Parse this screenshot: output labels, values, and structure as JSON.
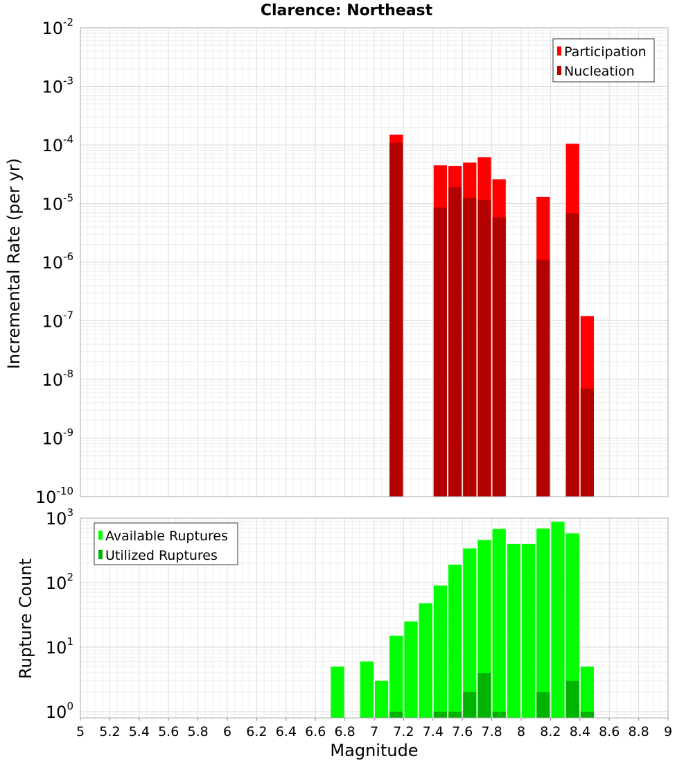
{
  "chart_data": [
    {
      "type": "bar",
      "title": "Clarence: Northeast",
      "ylabel": "Incremental Rate (per yr)",
      "xlabel": "",
      "yscale": "log",
      "ylim": [
        1e-10,
        0.01
      ],
      "xlim": [
        5,
        9
      ],
      "grid": true,
      "legend_position": "top-right",
      "yticks": [
        "10^-10",
        "10^-9",
        "10^-8",
        "10^-7",
        "10^-6",
        "10^-5",
        "10^-4",
        "10^-3",
        "10^-2"
      ],
      "x": [
        7.15,
        7.45,
        7.55,
        7.65,
        7.75,
        7.85,
        8.15,
        8.35,
        8.45
      ],
      "series": [
        {
          "name": "Participation",
          "color": "#ff0000",
          "values": [
            0.00015,
            4.5e-05,
            4.4e-05,
            5e-05,
            6.2e-05,
            2.6e-05,
            1.3e-05,
            0.000105,
            1.2e-07
          ]
        },
        {
          "name": "Nucleation",
          "color": "#b30000",
          "values": [
            0.00011,
            8.5e-06,
            1.9e-05,
            1.25e-05,
            1.15e-05,
            5.8e-06,
            1.1e-06,
            6.8e-06,
            7e-09
          ]
        }
      ]
    },
    {
      "type": "bar",
      "ylabel": "Rupture Count",
      "xlabel": "Magnitude",
      "yscale": "log",
      "ylim": [
        0.8,
        1000
      ],
      "xlim": [
        5,
        9
      ],
      "grid": true,
      "legend_position": "top-left",
      "yticks": [
        "10^0",
        "10^1",
        "10^2",
        "10^3"
      ],
      "xticks": [
        "5",
        "5.2",
        "5.4",
        "5.6",
        "5.8",
        "6",
        "6.2",
        "6.4",
        "6.6",
        "6.8",
        "7",
        "7.2",
        "7.4",
        "7.6",
        "7.8",
        "8",
        "8.2",
        "8.4",
        "8.6",
        "8.8",
        "9"
      ],
      "x": [
        6.75,
        6.95,
        7.05,
        7.15,
        7.25,
        7.35,
        7.45,
        7.55,
        7.65,
        7.75,
        7.85,
        7.95,
        8.05,
        8.15,
        8.25,
        8.35,
        8.45
      ],
      "series": [
        {
          "name": "Available Ruptures",
          "color": "#00ff00",
          "values": [
            5,
            6,
            3,
            15,
            25,
            48,
            90,
            190,
            340,
            460,
            680,
            400,
            400,
            690,
            880,
            580,
            5
          ]
        },
        {
          "name": "Utilized Ruptures",
          "color": "#00b300",
          "values": [
            0,
            0,
            0,
            1,
            0,
            0,
            1,
            1,
            2,
            4,
            1,
            0,
            0,
            2,
            0,
            3,
            1
          ]
        }
      ]
    }
  ]
}
